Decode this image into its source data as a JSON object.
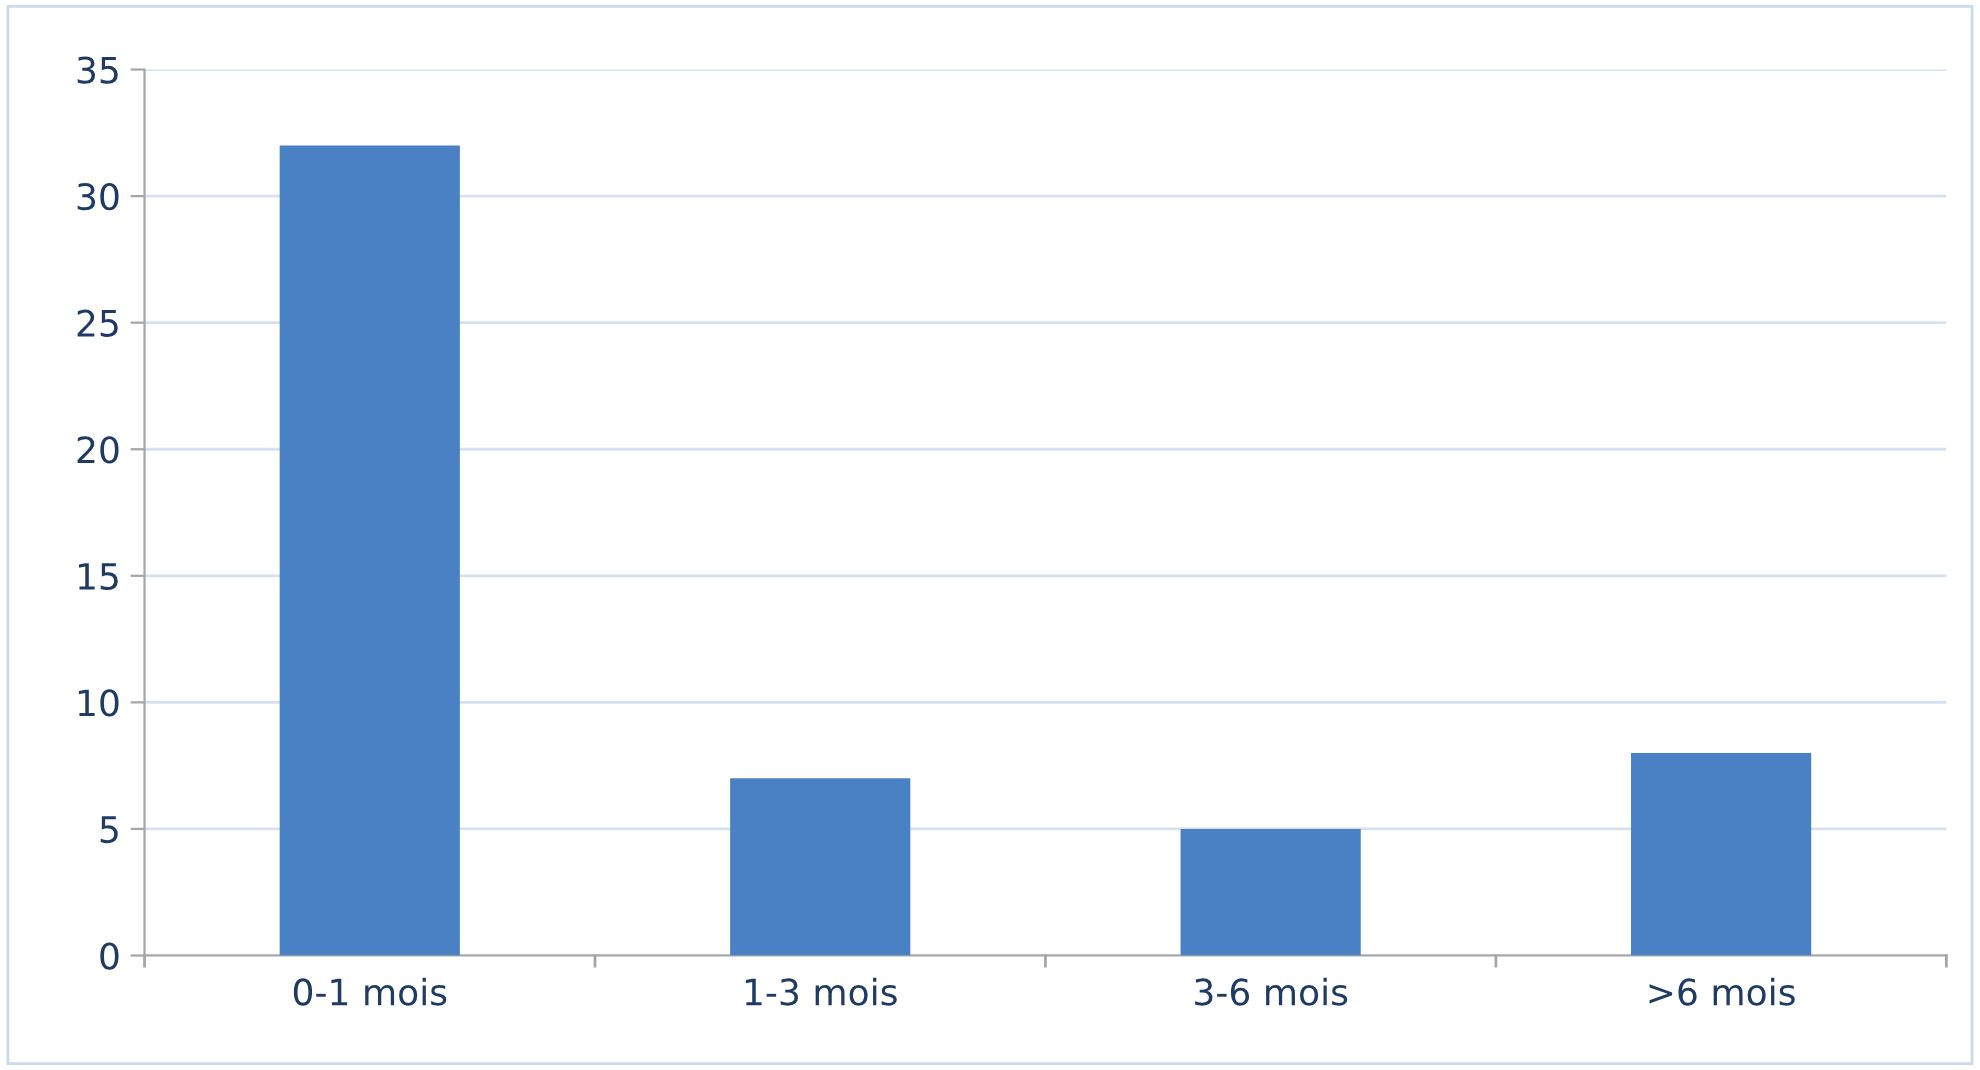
{
  "chart_data": {
    "type": "bar",
    "categories": [
      "0-1 mois",
      "1-3 mois",
      "3-6 mois",
      ">6 mois"
    ],
    "values": [
      32,
      7,
      5,
      8
    ],
    "color": "#4a80c4",
    "ylim": [
      0,
      35
    ],
    "yticks": [
      0,
      5,
      10,
      15,
      20,
      25,
      30,
      35
    ],
    "grid": "y",
    "legend": false
  }
}
